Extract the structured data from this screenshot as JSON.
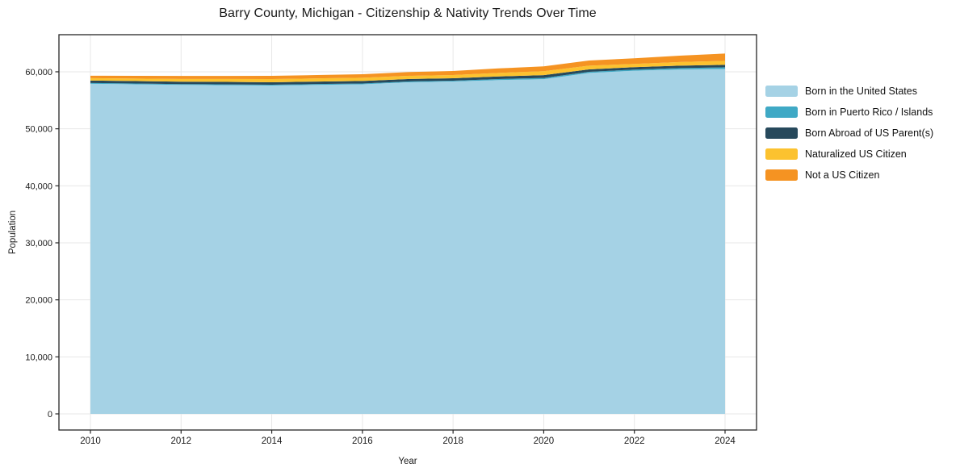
{
  "chart_data": {
    "type": "area",
    "stacked": true,
    "title": "Barry County, Michigan - Citizenship & Nativity Trends Over Time",
    "xlabel": "Year",
    "ylabel": "Population",
    "x": [
      2010,
      2011,
      2012,
      2013,
      2014,
      2015,
      2016,
      2017,
      2018,
      2019,
      2020,
      2021,
      2022,
      2023,
      2024
    ],
    "series": [
      {
        "name": "Born in the United States",
        "color": "#a5d2e5",
        "values": [
          57900,
          57800,
          57700,
          57650,
          57600,
          57700,
          57800,
          58150,
          58300,
          58550,
          58700,
          59800,
          60200,
          60400,
          60500
        ]
      },
      {
        "name": "Born in Puerto Rico / Islands",
        "color": "#3fa9c5",
        "values": [
          140,
          140,
          140,
          140,
          140,
          150,
          150,
          150,
          140,
          180,
          225,
          200,
          185,
          250,
          285
        ]
      },
      {
        "name": "Born Abroad of US Parent(s)",
        "color": "#27495c",
        "values": [
          425,
          425,
          425,
          430,
          425,
          430,
          440,
          430,
          425,
          450,
          480,
          430,
          425,
          430,
          425
        ]
      },
      {
        "name": "Naturalized US Citizen",
        "color": "#fcc22f",
        "values": [
          425,
          450,
          480,
          520,
          565,
          560,
          560,
          560,
          565,
          630,
          700,
          650,
          565,
          640,
          710
        ]
      },
      {
        "name": "Not a US Citizen",
        "color": "#f59322",
        "values": [
          425,
          480,
          520,
          540,
          565,
          590,
          620,
          660,
          710,
          780,
          850,
          900,
          990,
          1100,
          1280
        ]
      }
    ],
    "xticks": [
      2010,
      2012,
      2014,
      2016,
      2018,
      2020,
      2022,
      2024
    ],
    "yticks": [
      0,
      10000,
      20000,
      30000,
      40000,
      50000,
      60000
    ],
    "ytick_labels": [
      "0",
      "10,000",
      "20,000",
      "30,000",
      "40,000",
      "50,000",
      "60,000"
    ],
    "ylim": [
      0,
      66500
    ],
    "grid": true,
    "legend_position": "right"
  }
}
